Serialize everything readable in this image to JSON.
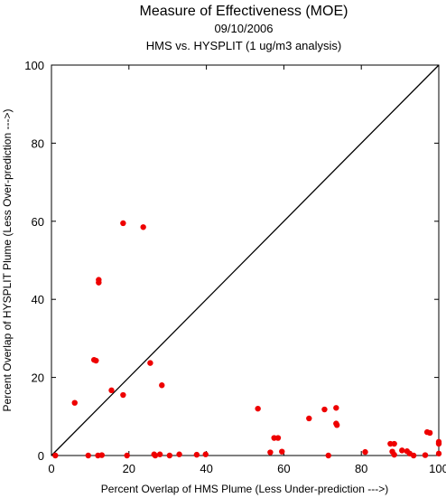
{
  "chart_data": {
    "type": "scatter",
    "title": "Measure of Effectiveness (MOE)",
    "subtitle": "09/10/2006",
    "subtitle2": "HMS vs. HYSPLIT  (1 ug/m3 analysis)",
    "xlabel": "Percent Overlap of HMS Plume (Less Under-prediction --->)",
    "ylabel": "Percent Overlap of HYSPLIT Plume (Less Over-prediction --->)",
    "xlim": [
      0,
      100
    ],
    "ylim": [
      0,
      100
    ],
    "xticks": [
      0,
      20,
      40,
      60,
      80,
      100
    ],
    "yticks": [
      0,
      20,
      40,
      60,
      80,
      100
    ],
    "grid": false,
    "reference_line": "y = x",
    "point_color": "#ee0000",
    "points": [
      {
        "x": 1,
        "y": 0
      },
      {
        "x": 6,
        "y": 13.5
      },
      {
        "x": 9.5,
        "y": 0
      },
      {
        "x": 11,
        "y": 24.5
      },
      {
        "x": 11.5,
        "y": 24.3
      },
      {
        "x": 12,
        "y": 0
      },
      {
        "x": 12.2,
        "y": 45
      },
      {
        "x": 12.2,
        "y": 44.3
      },
      {
        "x": 13,
        "y": 0.1
      },
      {
        "x": 15.5,
        "y": 16.7
      },
      {
        "x": 18.5,
        "y": 15.5
      },
      {
        "x": 18.5,
        "y": 59.5
      },
      {
        "x": 19.5,
        "y": 0
      },
      {
        "x": 23.7,
        "y": 58.5
      },
      {
        "x": 25.5,
        "y": 23.7
      },
      {
        "x": 26.5,
        "y": 0.3
      },
      {
        "x": 26.8,
        "y": 0
      },
      {
        "x": 28,
        "y": 0.3
      },
      {
        "x": 28.5,
        "y": 18
      },
      {
        "x": 30.5,
        "y": 0
      },
      {
        "x": 33,
        "y": 0.3
      },
      {
        "x": 37.5,
        "y": 0.2
      },
      {
        "x": 39.8,
        "y": 0.3
      },
      {
        "x": 53.3,
        "y": 12
      },
      {
        "x": 56.5,
        "y": 0.8
      },
      {
        "x": 57.5,
        "y": 4.5
      },
      {
        "x": 58.5,
        "y": 4.5
      },
      {
        "x": 59.5,
        "y": 1
      },
      {
        "x": 66.5,
        "y": 9.5
      },
      {
        "x": 70.5,
        "y": 11.8
      },
      {
        "x": 71.5,
        "y": 0
      },
      {
        "x": 73.5,
        "y": 12.2
      },
      {
        "x": 73.5,
        "y": 8.2
      },
      {
        "x": 73.7,
        "y": 7.8
      },
      {
        "x": 81,
        "y": 0.9
      },
      {
        "x": 87.5,
        "y": 3
      },
      {
        "x": 88,
        "y": 1
      },
      {
        "x": 88.5,
        "y": 3
      },
      {
        "x": 88.5,
        "y": 0.2
      },
      {
        "x": 90.5,
        "y": 1.3
      },
      {
        "x": 91.8,
        "y": 1.1
      },
      {
        "x": 92.5,
        "y": 0.5
      },
      {
        "x": 93.5,
        "y": 0
      },
      {
        "x": 96.5,
        "y": 0.1
      },
      {
        "x": 97,
        "y": 6
      },
      {
        "x": 97.7,
        "y": 5.8
      },
      {
        "x": 100,
        "y": 3.5
      },
      {
        "x": 100,
        "y": 3
      },
      {
        "x": 100,
        "y": 0.5
      }
    ]
  }
}
